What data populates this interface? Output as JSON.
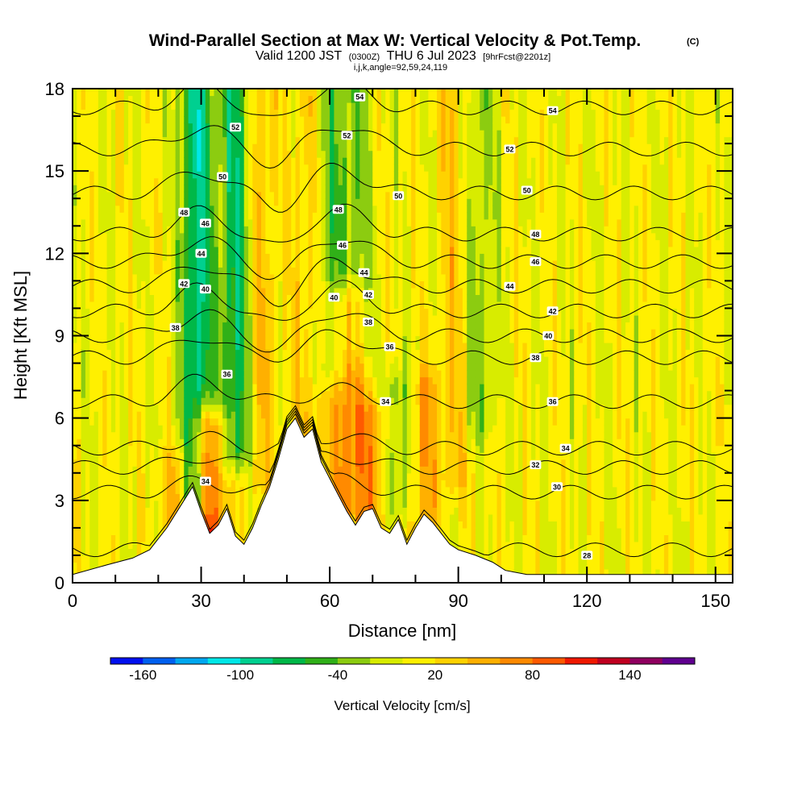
{
  "chart_data": {
    "type": "heatmap",
    "title": "Wind-Parallel Section at Max W: Vertical Velocity & Pot.Temp.",
    "title_mark": "(C)",
    "subtitle": {
      "valid_prefix": "Valid 1200 JST",
      "utc": "(0300Z)",
      "date": "THU 6 Jul 2023",
      "forecast": "[9hrFcst@2201z]"
    },
    "params": "i,j,k,angle=92,59,24,119",
    "xlabel": "Distance [nm]",
    "ylabel": "Height [Kft MSL]",
    "xlim": [
      0,
      154
    ],
    "ylim": [
      0,
      18
    ],
    "x_ticks": [
      "0",
      "30",
      "60",
      "90",
      "120",
      "150"
    ],
    "y_ticks": [
      "0",
      "3",
      "6",
      "9",
      "12",
      "15",
      "18"
    ],
    "colorbar": {
      "label": "Vertical Velocity [cm/s]",
      "tick_labels": [
        "-160",
        "-100",
        "-40",
        "20",
        "80",
        "140"
      ],
      "colors": [
        "#0010f0",
        "#0060f0",
        "#00a8f0",
        "#00e8e8",
        "#00d090",
        "#00b848",
        "#30b018",
        "#8ccc10",
        "#d8ec00",
        "#fff000",
        "#ffd200",
        "#ffb000",
        "#ff8a00",
        "#ff5a00",
        "#f01800",
        "#c00020",
        "#900060",
        "#600090"
      ]
    },
    "terrain_height_kft": [
      [
        0,
        0.3
      ],
      [
        8,
        0.65
      ],
      [
        14,
        0.9
      ],
      [
        18,
        1.2
      ],
      [
        22,
        2.0
      ],
      [
        26,
        3.0
      ],
      [
        28,
        3.5
      ],
      [
        30,
        2.6
      ],
      [
        32,
        1.8
      ],
      [
        34,
        2.1
      ],
      [
        36,
        2.7
      ],
      [
        38,
        1.7
      ],
      [
        40,
        1.4
      ],
      [
        42,
        2.0
      ],
      [
        44,
        2.8
      ],
      [
        46,
        3.5
      ],
      [
        48,
        4.5
      ],
      [
        50,
        5.6
      ],
      [
        52,
        6.0
      ],
      [
        54,
        5.3
      ],
      [
        56,
        5.6
      ],
      [
        58,
        4.4
      ],
      [
        60,
        3.8
      ],
      [
        62,
        3.2
      ],
      [
        64,
        2.6
      ],
      [
        66,
        2.1
      ],
      [
        68,
        2.6
      ],
      [
        70,
        2.7
      ],
      [
        72,
        2.0
      ],
      [
        74,
        1.8
      ],
      [
        76,
        2.3
      ],
      [
        78,
        1.4
      ],
      [
        80,
        2.0
      ],
      [
        82,
        2.5
      ],
      [
        84,
        2.2
      ],
      [
        86,
        1.8
      ],
      [
        88,
        1.4
      ],
      [
        90,
        1.2
      ],
      [
        94,
        1.0
      ],
      [
        98,
        0.75
      ],
      [
        101,
        0.45
      ],
      [
        106,
        0.3
      ],
      [
        154,
        0.3
      ]
    ],
    "vertical_velocity_cm_s": {
      "background": 5,
      "updrafts": [
        {
          "x": 24,
          "y_range": [
            2,
            4
          ],
          "value": 45
        },
        {
          "x": 32,
          "y_range": [
            2,
            5.5
          ],
          "value": 110
        },
        {
          "x": 44,
          "y_range": [
            4,
            18
          ],
          "value": 35
        },
        {
          "x": 55,
          "y_range": [
            4,
            18
          ],
          "value": 30
        },
        {
          "x": 64,
          "y_range": [
            3,
            10
          ],
          "value": 70
        },
        {
          "x": 70,
          "y_range": [
            2,
            6
          ],
          "value": 55
        },
        {
          "x": 82,
          "y_range": [
            2,
            7
          ],
          "value": 50
        },
        {
          "x": 89,
          "y_range": [
            4,
            18
          ],
          "value": 30
        }
      ],
      "downdrafts": [
        {
          "x": 29,
          "y_range": [
            3,
            18
          ],
          "value": -95
        },
        {
          "x": 38,
          "y_range": [
            5,
            18
          ],
          "value": -80
        },
        {
          "x": 60,
          "y_range": [
            8,
            18
          ],
          "value": -45
        },
        {
          "x": 66,
          "y_range": [
            9,
            18
          ],
          "value": -40
        },
        {
          "x": 76,
          "y_range": [
            3,
            7
          ],
          "value": -45
        },
        {
          "x": 95,
          "y_range": [
            6,
            18
          ],
          "value": -35
        }
      ]
    },
    "potential_temperature_C": {
      "contour_interval": 2,
      "levels": [
        28,
        30,
        32,
        34,
        36,
        38,
        40,
        42,
        44,
        46,
        48,
        50,
        52,
        54
      ],
      "labels": [
        {
          "x": 31,
          "y": 3.7,
          "text": "34"
        },
        {
          "x": 36,
          "y": 7.6,
          "text": "36"
        },
        {
          "x": 24,
          "y": 9.3,
          "text": "38"
        },
        {
          "x": 31,
          "y": 10.7,
          "text": "40"
        },
        {
          "x": 26,
          "y": 10.9,
          "text": "42"
        },
        {
          "x": 30,
          "y": 12.0,
          "text": "44"
        },
        {
          "x": 31,
          "y": 13.1,
          "text": "46"
        },
        {
          "x": 26,
          "y": 13.5,
          "text": "48"
        },
        {
          "x": 35,
          "y": 14.8,
          "text": "50"
        },
        {
          "x": 38,
          "y": 16.6,
          "text": "52"
        },
        {
          "x": 69,
          "y": 9.5,
          "text": "38"
        },
        {
          "x": 61,
          "y": 10.4,
          "text": "40"
        },
        {
          "x": 69,
          "y": 10.5,
          "text": "42"
        },
        {
          "x": 68,
          "y": 11.3,
          "text": "44"
        },
        {
          "x": 63,
          "y": 12.3,
          "text": "46"
        },
        {
          "x": 62,
          "y": 13.6,
          "text": "48"
        },
        {
          "x": 76,
          "y": 14.1,
          "text": "50"
        },
        {
          "x": 64,
          "y": 16.3,
          "text": "52"
        },
        {
          "x": 67,
          "y": 17.7,
          "text": "54"
        },
        {
          "x": 74,
          "y": 8.6,
          "text": "36"
        },
        {
          "x": 73,
          "y": 6.6,
          "text": "34"
        },
        {
          "x": 120,
          "y": 1.0,
          "text": "28"
        },
        {
          "x": 113,
          "y": 3.5,
          "text": "30"
        },
        {
          "x": 108,
          "y": 4.3,
          "text": "32"
        },
        {
          "x": 115,
          "y": 4.9,
          "text": "34"
        },
        {
          "x": 112,
          "y": 6.6,
          "text": "36"
        },
        {
          "x": 108,
          "y": 8.2,
          "text": "38"
        },
        {
          "x": 111,
          "y": 9.0,
          "text": "40"
        },
        {
          "x": 112,
          "y": 9.9,
          "text": "42"
        },
        {
          "x": 102,
          "y": 10.8,
          "text": "44"
        },
        {
          "x": 108,
          "y": 11.7,
          "text": "46"
        },
        {
          "x": 108,
          "y": 12.7,
          "text": "48"
        },
        {
          "x": 106,
          "y": 14.3,
          "text": "50"
        },
        {
          "x": 102,
          "y": 15.8,
          "text": "52"
        },
        {
          "x": 112,
          "y": 17.2,
          "text": "54"
        }
      ]
    }
  }
}
